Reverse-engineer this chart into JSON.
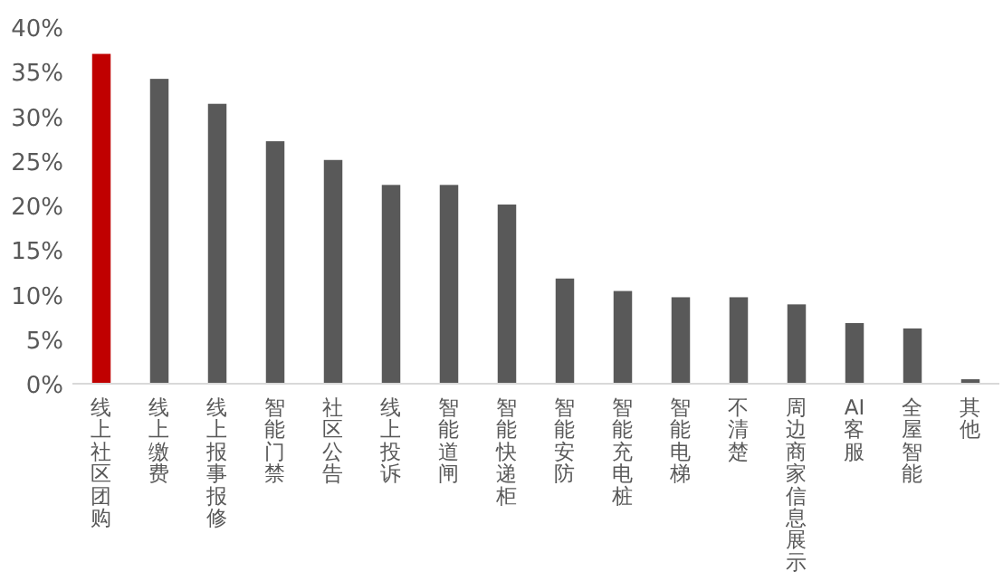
{
  "chart_data": {
    "type": "bar",
    "categories": [
      "线上社区团购",
      "线上缴费",
      "线上报事报修",
      "智能门禁",
      "社区公告",
      "线上投诉",
      "智能道闸",
      "智能快递柜",
      "智能安防",
      "智能充电桩",
      "智能电梯",
      "不清楚",
      "周边商家信息展示",
      "AI 客服",
      "全屋智能",
      "其他"
    ],
    "values": [
      37.0,
      34.2,
      31.4,
      27.2,
      25.1,
      22.3,
      22.3,
      20.1,
      11.8,
      10.4,
      9.7,
      9.7,
      8.9,
      6.8,
      6.2,
      0.5
    ],
    "colors": [
      "#c00000",
      "#595959",
      "#595959",
      "#595959",
      "#595959",
      "#595959",
      "#595959",
      "#595959",
      "#595959",
      "#595959",
      "#595959",
      "#595959",
      "#595959",
      "#595959",
      "#595959",
      "#595959"
    ],
    "ylim": [
      0,
      40
    ],
    "yticks": [
      {
        "value": 0,
        "label": "0%"
      },
      {
        "value": 5,
        "label": "5%"
      },
      {
        "value": 10,
        "label": "10%"
      },
      {
        "value": 15,
        "label": "15%"
      },
      {
        "value": 20,
        "label": "20%"
      },
      {
        "value": 25,
        "label": "25%"
      },
      {
        "value": 30,
        "label": "30%"
      },
      {
        "value": 35,
        "label": "35%"
      },
      {
        "value": 40,
        "label": "40%"
      }
    ],
    "grid": false
  }
}
